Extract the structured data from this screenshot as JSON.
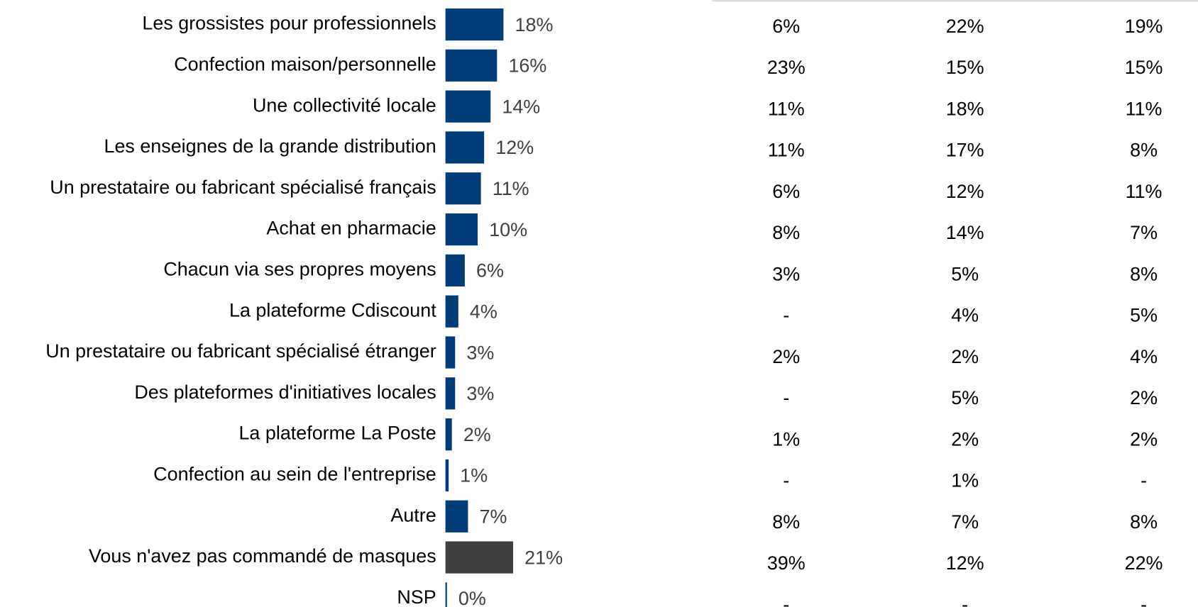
{
  "chart_data": {
    "type": "bar",
    "orientation": "horizontal",
    "categories": [
      "Les grossistes pour professionnels",
      "Confection maison/personnelle",
      "Une collectivité locale",
      "Les enseignes de la grande distribution",
      "Un prestataire ou fabricant spécialisé français",
      "Achat en pharmacie",
      "Chacun via ses propres moyens",
      "La plateforme Cdiscount",
      "Un prestataire ou fabricant spécialisé étranger",
      "Des plateformes d'initiatives locales",
      "La plateforme La Poste",
      "Confection au sein de l'entreprise",
      "Autre",
      "Vous n'avez pas commandé de masques",
      "NSP"
    ],
    "values": [
      18,
      16,
      14,
      12,
      11,
      10,
      6,
      4,
      3,
      3,
      2,
      1,
      7,
      21,
      0
    ],
    "value_labels": [
      "18%",
      "16%",
      "14%",
      "12%",
      "11%",
      "10%",
      "6%",
      "4%",
      "3%",
      "3%",
      "2%",
      "1%",
      "7%",
      "21%",
      "0%"
    ],
    "colors": [
      "#003d78",
      "#003d78",
      "#003d78",
      "#003d78",
      "#003d78",
      "#003d78",
      "#003d78",
      "#003d78",
      "#003d78",
      "#003d78",
      "#003d78",
      "#003d78",
      "#003d78",
      "#404040",
      "#003d78"
    ]
  },
  "table": {
    "rows": [
      [
        "6%",
        "22%",
        "19%"
      ],
      [
        "23%",
        "15%",
        "15%"
      ],
      [
        "11%",
        "18%",
        "11%"
      ],
      [
        "11%",
        "17%",
        "8%"
      ],
      [
        "6%",
        "12%",
        "11%"
      ],
      [
        "8%",
        "14%",
        "7%"
      ],
      [
        "3%",
        "5%",
        "8%"
      ],
      [
        "-",
        "4%",
        "5%"
      ],
      [
        "2%",
        "2%",
        "4%"
      ],
      [
        "-",
        "5%",
        "2%"
      ],
      [
        "1%",
        "2%",
        "2%"
      ],
      [
        "-",
        "1%",
        "-"
      ],
      [
        "8%",
        "7%",
        "8%"
      ],
      [
        "39%",
        "12%",
        "22%"
      ],
      [
        "-",
        "-",
        "-"
      ]
    ]
  }
}
